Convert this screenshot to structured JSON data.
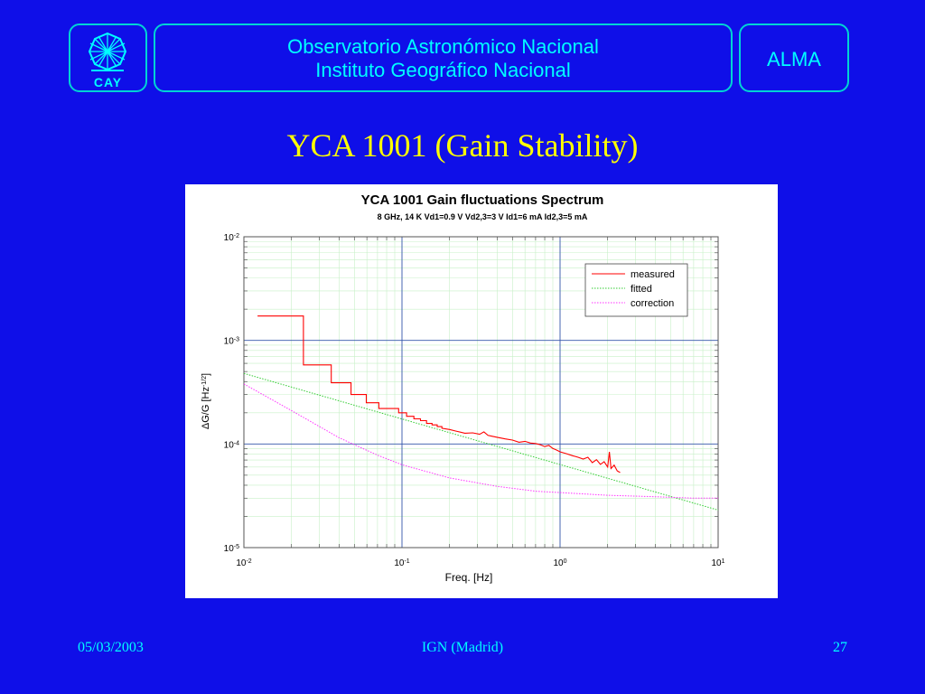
{
  "header": {
    "logo_text": "CAY",
    "org_line1": "Observatorio Astronómico Nacional",
    "org_line2": "Instituto Geográfico Nacional",
    "right_label": "ALMA"
  },
  "slide_title": "YCA 1001 (Gain Stability)",
  "footer": {
    "date": "05/03/2003",
    "place": "IGN (Madrid)",
    "page": "27"
  },
  "colors": {
    "background": "#0f0fe8",
    "accent": "#00ffff",
    "title": "#ffff00",
    "measured": "#ff0000",
    "fitted": "#33cc33",
    "correction": "#ff33ff"
  },
  "chart_data": {
    "type": "line",
    "title": "YCA 1001 Gain fluctuations Spectrum",
    "subtitle": "8 GHz, 14 K   Vd1=0.9 V Vd2,3=3 V Id1=6 mA Id2,3=5 mA",
    "xlabel": "Freq. [Hz]",
    "ylabel": "ΔG/G  [Hz",
    "ylabel_sup": "-1/2",
    "ylabel_close": "]",
    "xscale": "log",
    "yscale": "log",
    "xlim": [
      0.01,
      10
    ],
    "ylim": [
      1e-05,
      0.01
    ],
    "grid": true,
    "legend_position": "top-right",
    "x_ticks": [
      {
        "base": "10",
        "exp": "-2",
        "value": 0.01
      },
      {
        "base": "10",
        "exp": "-1",
        "value": 0.1
      },
      {
        "base": "10",
        "exp": "0",
        "value": 1
      },
      {
        "base": "10",
        "exp": "1",
        "value": 10
      }
    ],
    "y_ticks": [
      {
        "base": "10",
        "exp": "-2",
        "value": 0.01
      },
      {
        "base": "10",
        "exp": "-3",
        "value": 0.001
      },
      {
        "base": "10",
        "exp": "-4",
        "value": 0.0001
      },
      {
        "base": "10",
        "exp": "-5",
        "value": 1e-05
      }
    ],
    "series": [
      {
        "name": "measured",
        "style": "solid",
        "color": "#ff0000",
        "x": [
          0.0122,
          0.0238,
          0.0238,
          0.0357,
          0.0357,
          0.0476,
          0.0476,
          0.0595,
          0.0595,
          0.0714,
          0.0714,
          0.0833,
          0.0833,
          0.0952,
          0.0952,
          0.107,
          0.107,
          0.119,
          0.119,
          0.131,
          0.131,
          0.143,
          0.143,
          0.155,
          0.155,
          0.167,
          0.167,
          0.179,
          0.179,
          0.2,
          0.22,
          0.25,
          0.28,
          0.31,
          0.33,
          0.35,
          0.37,
          0.4,
          0.45,
          0.5,
          0.55,
          0.6,
          0.65,
          0.7,
          0.75,
          0.8,
          0.85,
          0.9,
          0.95,
          1.0,
          1.1,
          1.2,
          1.3,
          1.4,
          1.5,
          1.6,
          1.7,
          1.8,
          1.9,
          2.0,
          2.05,
          2.1,
          2.2,
          2.3,
          2.4
        ],
        "y": [
          0.00172,
          0.00172,
          0.00058,
          0.00058,
          0.00039,
          0.00039,
          0.0003,
          0.0003,
          0.00025,
          0.00025,
          0.00022,
          0.00022,
          0.00022,
          0.00022,
          0.0002,
          0.0002,
          0.000185,
          0.000185,
          0.000175,
          0.000175,
          0.000168,
          0.000168,
          0.000158,
          0.000158,
          0.000153,
          0.000153,
          0.000147,
          0.000147,
          0.000142,
          0.000138,
          0.000133,
          0.000127,
          0.000128,
          0.000124,
          0.000131,
          0.000121,
          0.000119,
          0.000116,
          0.000112,
          0.000109,
          0.000104,
          0.000106,
          0.000102,
          0.000101,
          9.85e-05,
          9.45e-05,
          9.7e-05,
          9.05e-05,
          8.75e-05,
          8.4e-05,
          8.05e-05,
          7.7e-05,
          7.45e-05,
          7.15e-05,
          7.45e-05,
          6.6e-05,
          7.05e-05,
          6.35e-05,
          6.75e-05,
          6e-05,
          8.4e-05,
          5.8e-05,
          6.25e-05,
          5.5e-05,
          5.3e-05
        ]
      },
      {
        "name": "fitted",
        "style": "dotted",
        "color": "#33cc33",
        "x": [
          0.01,
          10
        ],
        "y": [
          0.00048,
          2.3e-05
        ]
      },
      {
        "name": "correction",
        "style": "dotted",
        "color": "#ff33ff",
        "x": [
          0.01,
          0.02,
          0.04,
          0.07,
          0.1,
          0.2,
          0.4,
          0.7,
          1.0,
          2.0,
          4.0,
          7.0,
          10.0
        ],
        "y": [
          0.00038,
          0.00021,
          0.000115,
          7.8e-05,
          6.3e-05,
          4.7e-05,
          3.9e-05,
          3.5e-05,
          3.4e-05,
          3.2e-05,
          3.1e-05,
          3e-05,
          3e-05
        ]
      }
    ]
  }
}
